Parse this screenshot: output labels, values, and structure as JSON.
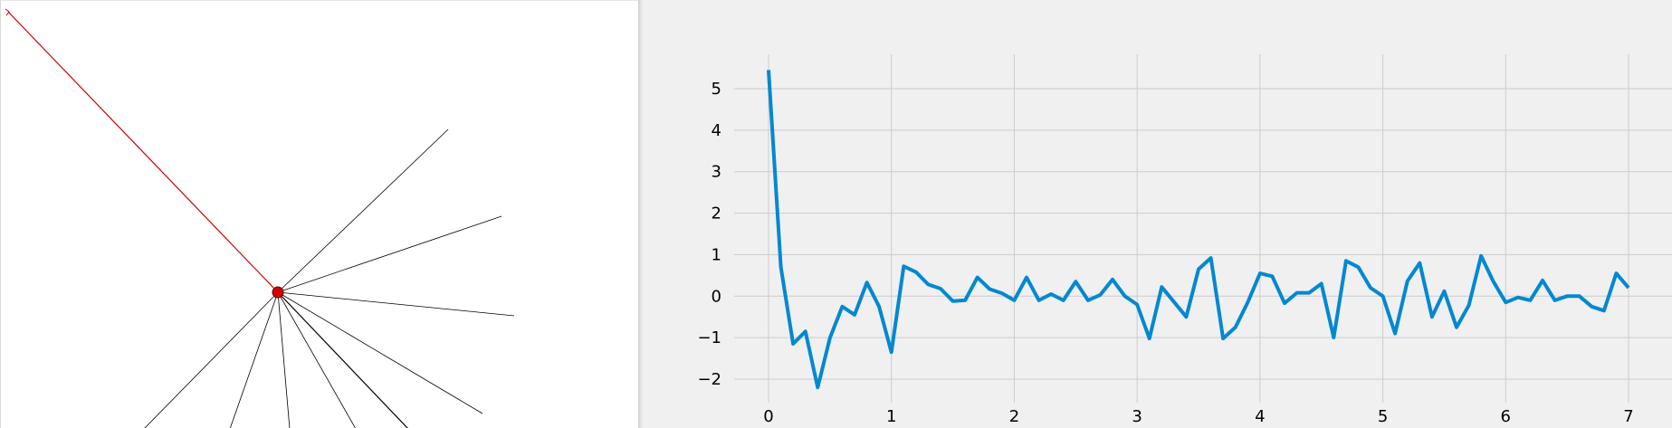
{
  "scene": {
    "tether_color": "#cc0000",
    "anchor_color": "#d40000",
    "ray_color": "#000000",
    "ray_count": 10
  },
  "chart_data": {
    "type": "line",
    "title": "",
    "xlabel": "",
    "ylabel": "",
    "xlim": [
      -0.35,
      7.35
    ],
    "ylim": [
      -2.3,
      5.8
    ],
    "xticks": [
      0,
      1,
      2,
      3,
      4,
      5,
      6,
      7
    ],
    "yticks": [
      -2,
      -1,
      0,
      1,
      2,
      3,
      4,
      5
    ],
    "grid": true,
    "line_color": "#0288d1",
    "background": "#f0f0f0",
    "series": [
      {
        "x": [
          0,
          0.1,
          0.2,
          0.3,
          0.4,
          0.5,
          0.6,
          0.7,
          0.8,
          0.9,
          1.0,
          1.1,
          1.2,
          1.3,
          1.4,
          1.5,
          1.6,
          1.7,
          1.8,
          1.9,
          2.0,
          2.1,
          2.2,
          2.3,
          2.4,
          2.5,
          2.6,
          2.7,
          2.8,
          2.9,
          3.0,
          3.1,
          3.2,
          3.3,
          3.4,
          3.5,
          3.6,
          3.7,
          3.8,
          3.9,
          4.0,
          4.1,
          4.2,
          4.3,
          4.4,
          4.5,
          4.6,
          4.7,
          4.8,
          4.9,
          5.0,
          5.1,
          5.2,
          5.3,
          5.4,
          5.5,
          5.6,
          5.7,
          5.8,
          5.9,
          6.0,
          6.1,
          6.2,
          6.3,
          6.4,
          6.5,
          6.6,
          6.7,
          6.8,
          6.9,
          7.0
        ],
        "values": [
          5.45,
          0.7,
          -1.15,
          -0.85,
          -2.2,
          -1.0,
          -0.25,
          -0.45,
          0.33,
          -0.25,
          -1.35,
          0.72,
          0.58,
          0.28,
          0.18,
          -0.12,
          -0.1,
          0.45,
          0.17,
          0.07,
          -0.1,
          0.45,
          -0.1,
          0.05,
          -0.1,
          0.35,
          -0.1,
          0.03,
          0.4,
          0.0,
          -0.2,
          -1.02,
          0.22,
          -0.14,
          -0.5,
          0.65,
          0.92,
          -1.02,
          -0.75,
          -0.15,
          0.55,
          0.48,
          -0.17,
          0.08,
          0.08,
          0.3,
          -1.0,
          0.85,
          0.7,
          0.2,
          0.0,
          -0.9,
          0.36,
          0.8,
          -0.5,
          0.12,
          -0.75,
          -0.22,
          0.97,
          0.35,
          -0.15,
          -0.03,
          -0.1,
          0.38,
          -0.1,
          0.0,
          0.0,
          -0.25,
          -0.35,
          0.55,
          0.2
        ]
      }
    ]
  }
}
